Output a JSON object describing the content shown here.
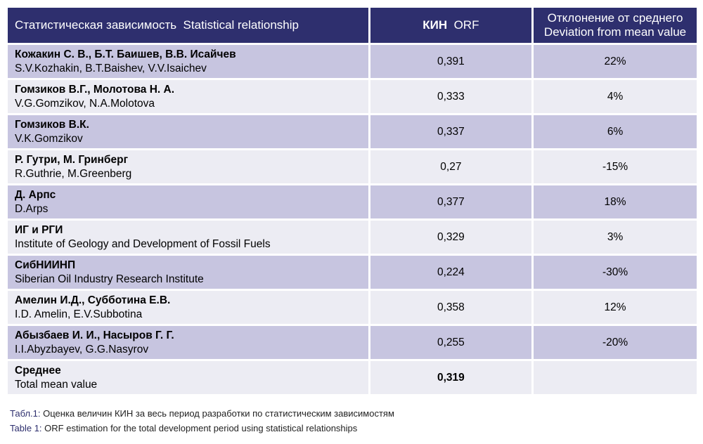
{
  "table": {
    "headers": {
      "col1_ru": "Статистическая зависимость",
      "col1_en": "Statistical relationship",
      "col2_ru": "КИН",
      "col2_en": "ORF",
      "col3_ru": "Отклонение от среднего",
      "col3_en": "Deviation from mean value"
    },
    "rows": [
      {
        "ru": "Кожакин С. В., Б.Т. Баишев, В.В. Исайчев",
        "en": "S.V.Kozhakin, B.T.Baishev, V.V.Isaichev",
        "orf": "0,391",
        "dev": "22%"
      },
      {
        "ru": "Гомзиков В.Г., Молотова Н. А.",
        "en": "V.G.Gomzikov, N.A.Molotova",
        "orf": "0,333",
        "dev": "4%"
      },
      {
        "ru": "Гомзиков В.К.",
        "en": "V.K.Gomzikov",
        "orf": "0,337",
        "dev": "6%"
      },
      {
        "ru": "Р. Гутри, М. Гринберг",
        "en": "R.Guthrie, M.Greenberg",
        "orf": "0,27",
        "dev": "-15%"
      },
      {
        "ru": "Д. Арпс",
        "en": "D.Arps",
        "orf": "0,377",
        "dev": "18%"
      },
      {
        "ru": "ИГ и РГИ",
        "en": "Institute of Geology and Development of Fossil Fuels",
        "orf": "0,329",
        "dev": "3%"
      },
      {
        "ru": "СибНИИНП",
        "en": "Siberian Oil Industry Research Institute",
        "orf": "0,224",
        "dev": "-30%"
      },
      {
        "ru": "Амелин И.Д., Субботина Е.В.",
        "en": "I.D. Amelin, E.V.Subbotina",
        "orf": "0,358",
        "dev": "12%"
      },
      {
        "ru": "Абызбаев И. И., Насыров Г. Г.",
        "en": "I.I.Abyzbayev, G.G.Nasyrov",
        "orf": "0,255",
        "dev": "-20%"
      }
    ],
    "mean": {
      "ru": "Среднее",
      "en": "Total mean value",
      "orf": "0,319",
      "dev": ""
    }
  },
  "caption": {
    "ru_label": "Табл.1:",
    "ru_text": " Оценка величин КИН за весь период разработки по статистическим зависимостям",
    "en_label": "Table 1:",
    "en_text": " ORF estimation for the total development period using statistical relationships"
  }
}
